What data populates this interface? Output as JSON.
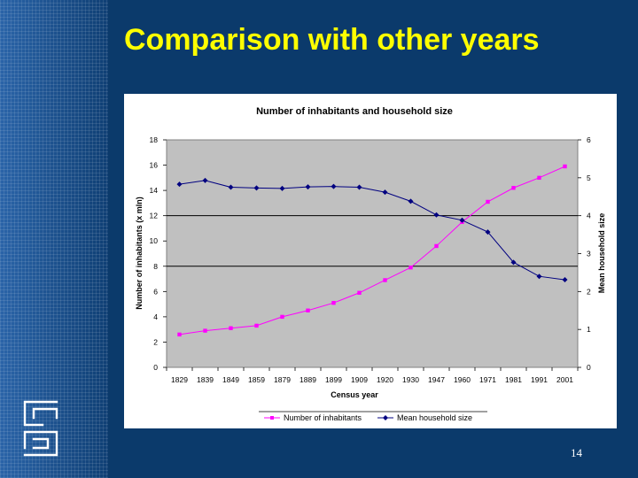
{
  "slide": {
    "title": "Comparison with other years",
    "page_number": "14"
  },
  "logo": {
    "icon": "cbs-logo-icon"
  },
  "colors": {
    "background": "#0b3a6b",
    "title": "#ffff00",
    "plot_area": "#c0c0c0",
    "inhabitants": "#ff00ff",
    "household": "#000080"
  },
  "chart_data": {
    "type": "line",
    "title": "Number of inhabitants and household size",
    "xlabel": "Census year",
    "ylabel": "Number of inhabitants (x mln)",
    "y2label": "Mean household size",
    "ylim": [
      0,
      18
    ],
    "y2lim": [
      0,
      6
    ],
    "yticks": [
      "0",
      "2",
      "4",
      "6",
      "8",
      "10",
      "12",
      "14",
      "16",
      "18"
    ],
    "y2ticks": [
      "0",
      "1",
      "2",
      "3",
      "4",
      "5",
      "6"
    ],
    "categories": [
      "1829",
      "1839",
      "1849",
      "1859",
      "1879",
      "1889",
      "1899",
      "1909",
      "1920",
      "1930",
      "1947",
      "1960",
      "1971",
      "1981",
      "1991",
      "2001"
    ],
    "grid": "horizontal lines at 12 and 8",
    "legend_position": "bottom",
    "series": [
      {
        "name": "Number of inhabitants",
        "axis": "left",
        "values": [
          2.6,
          2.9,
          3.1,
          3.3,
          4.0,
          4.5,
          5.1,
          5.9,
          6.9,
          7.9,
          9.6,
          11.5,
          13.1,
          14.2,
          15.0,
          15.9
        ]
      },
      {
        "name": "Mean household size",
        "axis": "right",
        "values": [
          4.83,
          4.93,
          4.75,
          4.73,
          4.72,
          4.76,
          4.77,
          4.75,
          4.62,
          4.38,
          4.02,
          3.88,
          3.57,
          2.77,
          2.4,
          2.31
        ]
      }
    ]
  }
}
